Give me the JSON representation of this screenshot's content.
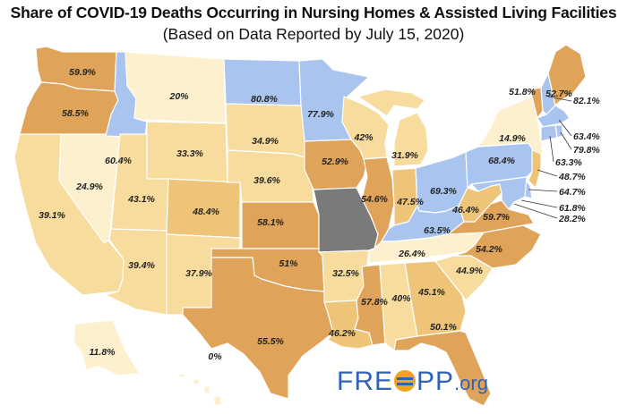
{
  "title": "Share of COVID-19 Deaths Occurring in Nursing Homes & Assisted Living Facilities",
  "subtitle": "(Based on Data Reported by July 15, 2020)",
  "logo": {
    "main_left": "FRE",
    "main_right": "PP",
    "suffix": ".org"
  },
  "colors": {
    "band_lt30": "#fdf0cf",
    "band_30_45": "#f8dc9e",
    "band_45_50": "#eec578",
    "band_50_60": "#e0a35a",
    "band_60_plus": "#a9c4ee",
    "no_data": "#7a7a7a"
  },
  "chart_data": {
    "type": "choropleth",
    "title": "Share of COVID-19 Deaths Occurring in Nursing Homes & Assisted Living Facilities",
    "subtitle": "(Based on Data Reported by July 15, 2020)",
    "unit": "%",
    "states": [
      {
        "id": "WA",
        "label": "59.9%",
        "value": 59.9
      },
      {
        "id": "OR",
        "label": "58.5%",
        "value": 58.5
      },
      {
        "id": "CA",
        "label": "39.1%",
        "value": 39.1
      },
      {
        "id": "NV",
        "label": "24.9%",
        "value": 24.9
      },
      {
        "id": "ID",
        "label": "60.4%",
        "value": 60.4
      },
      {
        "id": "MT",
        "label": "20%",
        "value": 20
      },
      {
        "id": "WY",
        "label": "33.3%",
        "value": 33.3
      },
      {
        "id": "UT",
        "label": "43.1%",
        "value": 43.1
      },
      {
        "id": "AZ",
        "label": "39.4%",
        "value": 39.4
      },
      {
        "id": "CO",
        "label": "48.4%",
        "value": 48.4
      },
      {
        "id": "NM",
        "label": "37.9%",
        "value": 37.9
      },
      {
        "id": "ND",
        "label": "80.8%",
        "value": 80.8
      },
      {
        "id": "SD",
        "label": "34.9%",
        "value": 34.9
      },
      {
        "id": "NE",
        "label": "39.6%",
        "value": 39.6
      },
      {
        "id": "KS",
        "label": "58.1%",
        "value": 58.1
      },
      {
        "id": "OK",
        "label": "51%",
        "value": 51
      },
      {
        "id": "TX",
        "label": "55.5%",
        "value": 55.5
      },
      {
        "id": "MN",
        "label": "77.9%",
        "value": 77.9
      },
      {
        "id": "IA",
        "label": "52.9%",
        "value": 52.9
      },
      {
        "id": "MO",
        "label": "",
        "value": null
      },
      {
        "id": "AR",
        "label": "32.5%",
        "value": 32.5
      },
      {
        "id": "LA",
        "label": "46.2%",
        "value": 46.2
      },
      {
        "id": "WI",
        "label": "42%",
        "value": 42
      },
      {
        "id": "IL",
        "label": "54.6%",
        "value": 54.6
      },
      {
        "id": "MI",
        "label": "31.9%",
        "value": 31.9
      },
      {
        "id": "IN",
        "label": "47.5%",
        "value": 47.5
      },
      {
        "id": "OH",
        "label": "69.3%",
        "value": 69.3
      },
      {
        "id": "KY",
        "label": "63.5%",
        "value": 63.5
      },
      {
        "id": "TN",
        "label": "26.4%",
        "value": 26.4
      },
      {
        "id": "MS",
        "label": "57.8%",
        "value": 57.8
      },
      {
        "id": "AL",
        "label": "40%",
        "value": 40
      },
      {
        "id": "GA",
        "label": "45.1%",
        "value": 45.1
      },
      {
        "id": "FL",
        "label": "50.1%",
        "value": 50.1
      },
      {
        "id": "SC",
        "label": "44.9%",
        "value": 44.9
      },
      {
        "id": "NC",
        "label": "54.2%",
        "value": 54.2
      },
      {
        "id": "VA",
        "label": "59.7%",
        "value": 59.7
      },
      {
        "id": "WV",
        "label": "46.4%",
        "value": 46.4
      },
      {
        "id": "PA",
        "label": "68.4%",
        "value": 68.4
      },
      {
        "id": "NY",
        "label": "14.9%",
        "value": 14.9
      },
      {
        "id": "VT",
        "label": "51.8%",
        "value": 51.8
      },
      {
        "id": "NH",
        "label": "82.1%",
        "value": 82.1
      },
      {
        "id": "ME",
        "label": "52.7%",
        "value": 52.7
      },
      {
        "id": "MA",
        "label": "63.4%",
        "value": 63.4
      },
      {
        "id": "RI",
        "label": "79.8%",
        "value": 79.8
      },
      {
        "id": "CT",
        "label": "63.3%",
        "value": 63.3
      },
      {
        "id": "NJ",
        "label": "48.7%",
        "value": 48.7
      },
      {
        "id": "DE",
        "label": "64.7%",
        "value": 64.7
      },
      {
        "id": "MD",
        "label": "61.8%",
        "value": 61.8
      },
      {
        "id": "DC",
        "label": "28.2%",
        "value": 28.2
      },
      {
        "id": "AK",
        "label": "11.8%",
        "value": 11.8
      },
      {
        "id": "HI",
        "label": "0%",
        "value": 0
      }
    ]
  }
}
